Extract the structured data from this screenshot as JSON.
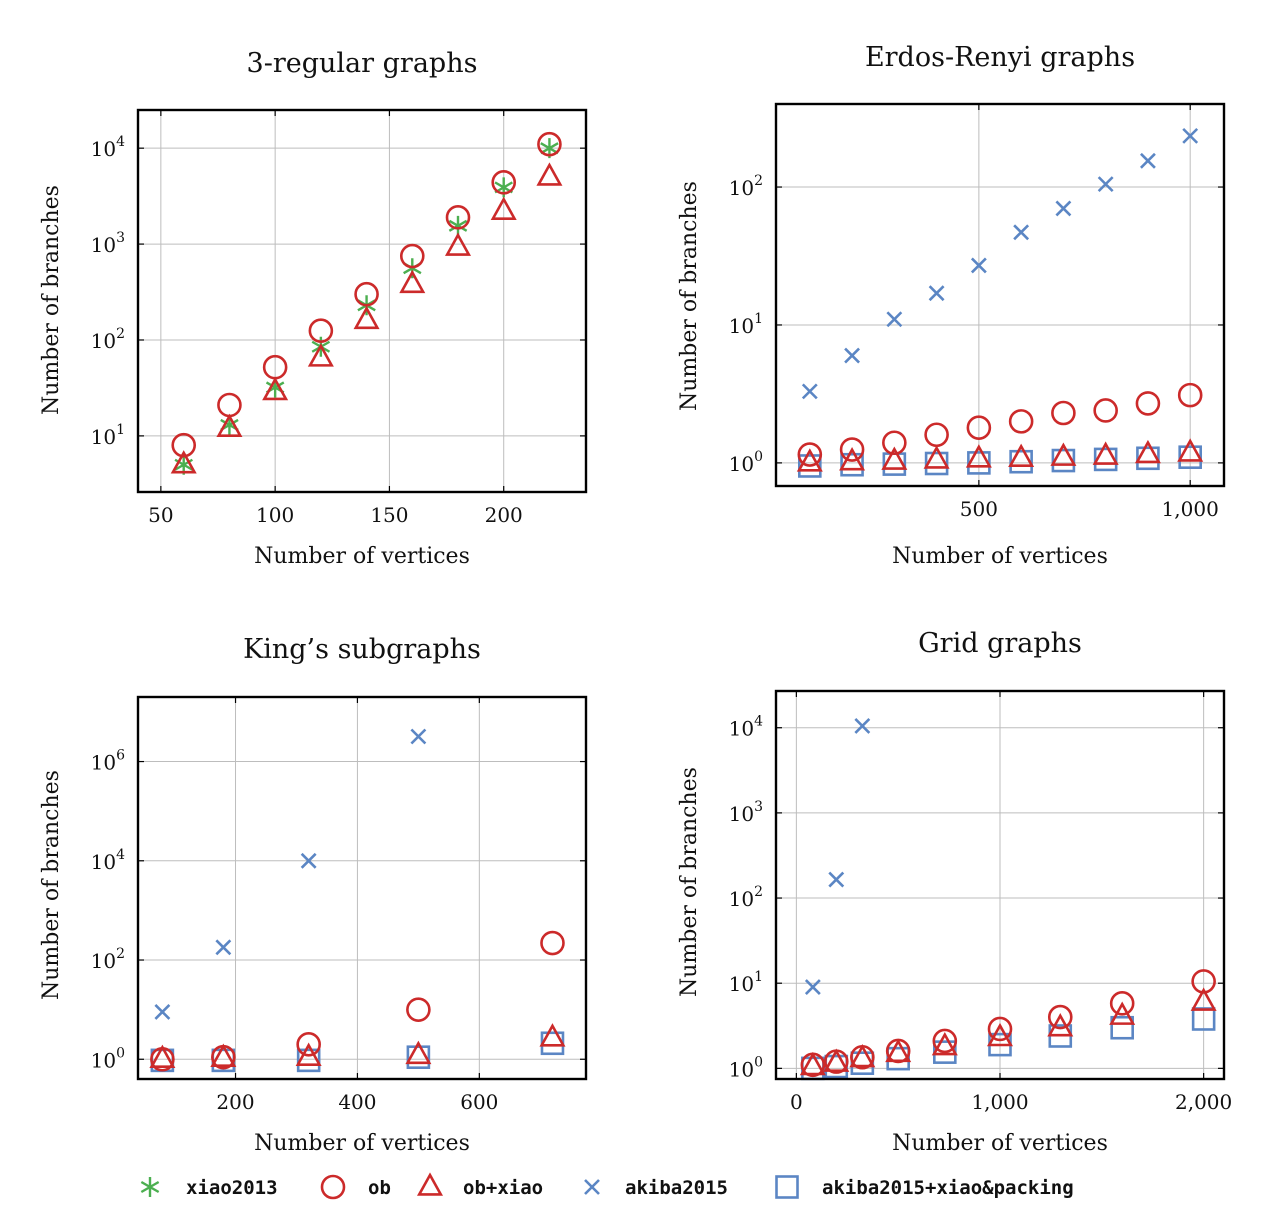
{
  "colors": {
    "xiao2013": "#4caf50",
    "ob": "#cc2a2a",
    "ob_xiao": "#cc2a2a",
    "akiba2015": "#5b86c4",
    "akiba2015_xiao_packing": "#5b86c4",
    "grid": "#bdbdbd",
    "frame": "#000000"
  },
  "legend": [
    {
      "series": "xiao2013",
      "label": "xiao2013",
      "marker": "asterisk"
    },
    {
      "series": "ob",
      "label": "ob",
      "marker": "circle"
    },
    {
      "series": "ob_xiao",
      "label": "ob+xiao",
      "marker": "triangle"
    },
    {
      "series": "akiba2015",
      "label": "akiba2015",
      "marker": "cross"
    },
    {
      "series": "akiba2015_xiao_packing",
      "label": "akiba2015+xiao&packing",
      "marker": "square"
    }
  ],
  "chart_data": [
    {
      "id": "regular",
      "type": "scatter",
      "title": "3-regular graphs",
      "xlabel": "Number of vertices",
      "ylabel": "Number of branches",
      "yscale": "log",
      "grid": true,
      "xlim": [
        40,
        236
      ],
      "ylim": [
        2.6,
        25000
      ],
      "xticks": [
        {
          "v": 50,
          "label": "50"
        },
        {
          "v": 100,
          "label": "100"
        },
        {
          "v": 150,
          "label": "150"
        },
        {
          "v": 200,
          "label": "200"
        }
      ],
      "yticks": [
        {
          "v": 10,
          "label": "10",
          "exp": "1"
        },
        {
          "v": 100,
          "label": "10",
          "exp": "2"
        },
        {
          "v": 1000,
          "label": "10",
          "exp": "3"
        },
        {
          "v": 10000,
          "label": "10",
          "exp": "4"
        }
      ],
      "series": [
        {
          "key": "xiao2013",
          "x": [
            60,
            80,
            100,
            120,
            140,
            160,
            180,
            200,
            220
          ],
          "y": [
            5,
            13,
            32,
            85,
            230,
            560,
            1550,
            3900,
            10000
          ]
        },
        {
          "key": "ob",
          "x": [
            60,
            80,
            100,
            120,
            140,
            160,
            180,
            200,
            220
          ],
          "y": [
            8,
            21,
            52,
            125,
            300,
            750,
            1900,
            4400,
            11000
          ]
        },
        {
          "key": "ob_xiao",
          "x": [
            60,
            80,
            100,
            120,
            140,
            160,
            180,
            200,
            220
          ],
          "y": [
            5,
            12,
            29,
            65,
            160,
            380,
            930,
            2200,
            5000
          ]
        }
      ]
    },
    {
      "id": "erdos",
      "type": "scatter",
      "title": "Erdos-Renyi graphs",
      "xlabel": "Number of vertices",
      "ylabel": "Number of branches",
      "yscale": "log",
      "grid": true,
      "xlim": [
        20,
        1080
      ],
      "ylim": [
        0.68,
        400
      ],
      "xticks": [
        {
          "v": 500,
          "label": "500"
        },
        {
          "v": 1000,
          "label": "1,000"
        }
      ],
      "yticks": [
        {
          "v": 1,
          "label": "10",
          "exp": "0"
        },
        {
          "v": 10,
          "label": "10",
          "exp": "1"
        },
        {
          "v": 100,
          "label": "10",
          "exp": "2"
        }
      ],
      "series": [
        {
          "key": "akiba2015",
          "x": [
            100,
            200,
            300,
            400,
            500,
            600,
            700,
            800,
            900,
            1000
          ],
          "y": [
            3.3,
            6,
            11,
            17,
            27,
            47,
            70,
            105,
            155,
            235
          ]
        },
        {
          "key": "ob",
          "x": [
            100,
            200,
            300,
            400,
            500,
            600,
            700,
            800,
            900,
            1000
          ],
          "y": [
            1.15,
            1.25,
            1.4,
            1.6,
            1.8,
            2.0,
            2.3,
            2.4,
            2.7,
            3.1
          ]
        },
        {
          "key": "ob_xiao",
          "x": [
            100,
            200,
            300,
            400,
            500,
            600,
            700,
            800,
            900,
            1000
          ],
          "y": [
            1.0,
            1.02,
            1.03,
            1.05,
            1.07,
            1.08,
            1.1,
            1.12,
            1.15,
            1.18
          ]
        },
        {
          "key": "akiba2015_xiao_packing",
          "x": [
            100,
            200,
            300,
            400,
            500,
            600,
            700,
            800,
            900,
            1000
          ],
          "y": [
            0.95,
            0.97,
            0.98,
            0.99,
            1.0,
            1.02,
            1.04,
            1.06,
            1.08,
            1.1
          ]
        }
      ]
    },
    {
      "id": "kings",
      "type": "scatter",
      "title": "King’s subgraphs",
      "xlabel": "Number of vertices",
      "ylabel": "Number of branches",
      "yscale": "log",
      "grid": true,
      "xlim": [
        40,
        775
      ],
      "ylim": [
        0.4,
        20000000
      ],
      "xticks": [
        {
          "v": 200,
          "label": "200"
        },
        {
          "v": 400,
          "label": "400"
        },
        {
          "v": 600,
          "label": "600"
        }
      ],
      "yticks": [
        {
          "v": 1,
          "label": "10",
          "exp": "0"
        },
        {
          "v": 100,
          "label": "10",
          "exp": "2"
        },
        {
          "v": 10000,
          "label": "10",
          "exp": "4"
        },
        {
          "v": 1000000,
          "label": "10",
          "exp": "6"
        }
      ],
      "series": [
        {
          "key": "akiba2015",
          "x": [
            80,
            180,
            320,
            500
          ],
          "y": [
            9,
            180,
            10000,
            3200000
          ]
        },
        {
          "key": "ob",
          "x": [
            80,
            180,
            320,
            500,
            720
          ],
          "y": [
            1.0,
            1.1,
            2.0,
            10,
            220
          ]
        },
        {
          "key": "ob_xiao",
          "x": [
            80,
            180,
            320,
            500,
            720
          ],
          "y": [
            1.0,
            1.05,
            1.1,
            1.2,
            2.7
          ]
        },
        {
          "key": "akiba2015_xiao_packing",
          "x": [
            80,
            180,
            320,
            500,
            720
          ],
          "y": [
            0.95,
            0.95,
            0.95,
            1.1,
            2.1
          ]
        }
      ]
    },
    {
      "id": "grid",
      "type": "scatter",
      "title": "Grid graphs",
      "xlabel": "Number of vertices",
      "ylabel": "Number of branches",
      "yscale": "log",
      "grid": true,
      "xlim": [
        -100,
        2100
      ],
      "ylim": [
        0.75,
        27000
      ],
      "xticks": [
        {
          "v": 0,
          "label": "0"
        },
        {
          "v": 1000,
          "label": "1,000"
        },
        {
          "v": 2000,
          "label": "2,000"
        }
      ],
      "yticks": [
        {
          "v": 1,
          "label": "10",
          "exp": "0"
        },
        {
          "v": 10,
          "label": "10",
          "exp": "1"
        },
        {
          "v": 100,
          "label": "10",
          "exp": "2"
        },
        {
          "v": 1000,
          "label": "10",
          "exp": "3"
        },
        {
          "v": 10000,
          "label": "10",
          "exp": "4"
        }
      ],
      "series": [
        {
          "key": "akiba2015",
          "x": [
            81,
            196,
            324
          ],
          "y": [
            9,
            165,
            10500
          ]
        },
        {
          "key": "ob",
          "x": [
            81,
            196,
            324,
            500,
            729,
            1000,
            1296,
            1600,
            2000
          ],
          "y": [
            1.1,
            1.2,
            1.35,
            1.6,
            2.1,
            2.9,
            4.0,
            5.8,
            10.5
          ]
        },
        {
          "key": "ob_xiao",
          "x": [
            81,
            196,
            324,
            500,
            729,
            1000,
            1296,
            1600,
            2000
          ],
          "y": [
            1.05,
            1.15,
            1.3,
            1.5,
            1.8,
            2.3,
            3.0,
            4.1,
            6.0
          ]
        },
        {
          "key": "akiba2015_xiao_packing",
          "x": [
            81,
            196,
            324,
            500,
            729,
            1000,
            1296,
            1600,
            2000
          ],
          "y": [
            1.0,
            1.05,
            1.15,
            1.3,
            1.55,
            1.9,
            2.4,
            3.0,
            3.8
          ]
        }
      ]
    }
  ]
}
